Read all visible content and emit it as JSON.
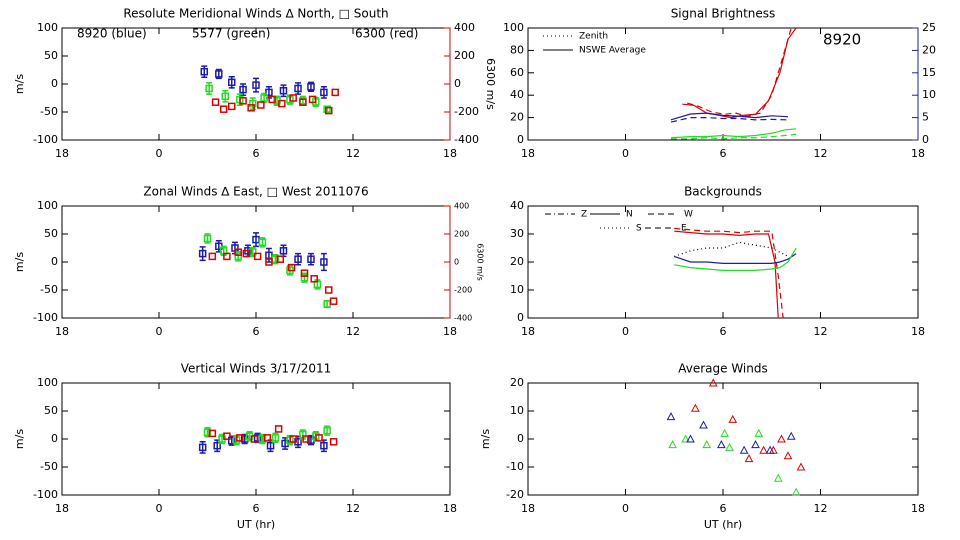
{
  "chart_data": [
    {
      "type": "scatter",
      "title": "Resolute Meridional Winds ∆ North, □ South",
      "xlim": [
        -6,
        18
      ],
      "xticks": [
        {
          "value": -6,
          "label": "18"
        },
        0,
        6,
        12,
        18
      ],
      "ylim": [
        -100,
        100
      ],
      "yticks": [
        -100,
        -50,
        0,
        50,
        100
      ],
      "ylabel": "m/s",
      "y2lim": [
        -400,
        400
      ],
      "y2ticks": [
        -400,
        -200,
        0,
        200,
        400
      ],
      "y2label": "6300 m/s",
      "y2color": "#dd0000",
      "annotations": [
        {
          "text": "8920 (blue)",
          "color": "#1c1ca8"
        },
        {
          "text": "5577 (green)",
          "color": "#22dd22"
        },
        {
          "text": "6300 (red)",
          "color": "#dd0000"
        }
      ],
      "series": [
        {
          "color": "#1c1ca8",
          "marker": "square",
          "x": [
            2.8,
            3.7,
            4.5,
            5.2,
            6.0,
            6.8,
            7.7,
            8.6,
            9.4,
            10.2
          ],
          "values": [
            22,
            18,
            3,
            -10,
            -2,
            -15,
            -12,
            -8,
            -5,
            -15
          ],
          "errors": [
            10,
            8,
            10,
            10,
            12,
            10,
            10,
            10,
            8,
            10
          ]
        },
        {
          "color": "#22dd22",
          "marker": "square",
          "x": [
            3.1,
            4.1,
            5.0,
            5.8,
            6.5,
            7.3,
            8.1,
            8.9,
            9.7,
            10.4
          ],
          "values": [
            -8,
            -22,
            -28,
            -35,
            -25,
            -30,
            -28,
            -30,
            -32,
            -45
          ],
          "errors": [
            10,
            10,
            10,
            10,
            8,
            8,
            8,
            8,
            8,
            5
          ]
        },
        {
          "color": "#dd0000",
          "marker": "square",
          "axis": "y2",
          "x": [
            3.5,
            4.0,
            4.5,
            5.2,
            5.7,
            6.3,
            7.0,
            7.6,
            8.3,
            8.9,
            9.5,
            10.5,
            10.9
          ],
          "values": [
            -130,
            -180,
            -160,
            -120,
            -170,
            -150,
            -110,
            -140,
            -100,
            -130,
            -110,
            -190,
            -60
          ]
        }
      ]
    },
    {
      "type": "line",
      "title": "Signal Brightness",
      "xlim": [
        -6,
        18
      ],
      "xticks": [
        {
          "value": -6,
          "label": "18"
        },
        0,
        6,
        12,
        18
      ],
      "ylim": [
        0,
        100
      ],
      "yticks": [
        0,
        20,
        40,
        60,
        80,
        100
      ],
      "y2lim": [
        0,
        25
      ],
      "y2ticks": [
        0,
        5,
        10,
        15,
        20,
        25
      ],
      "y2color": "#1c1ca8",
      "annotations": [
        {
          "text": "8920",
          "color": "#1c1ca8"
        }
      ],
      "legend": [
        {
          "label": "Zenith",
          "dash": "dotted"
        },
        {
          "label": "NSWE Average",
          "dash": "solid"
        }
      ],
      "series": [
        {
          "color": "#dd0000",
          "dash": "solid",
          "x": [
            3.5,
            4.2,
            5.0,
            5.8,
            6.5,
            7.2,
            8.0,
            8.8,
            9.5,
            10.0,
            10.5
          ],
          "values": [
            32,
            31,
            24,
            22,
            20,
            22,
            23,
            35,
            60,
            90,
            100
          ]
        },
        {
          "color": "#dd0000",
          "dash": "dashed",
          "x": [
            3.8,
            4.5,
            5.3,
            6.1,
            6.8,
            7.5,
            8.3,
            9.0,
            9.6,
            10.2
          ],
          "values": [
            33,
            30,
            25,
            23,
            24,
            21,
            24,
            40,
            70,
            100
          ]
        },
        {
          "color": "#1c1ca8",
          "dash": "solid",
          "axis": "y2",
          "x": [
            2.8,
            4.0,
            5.0,
            6.0,
            7.0,
            8.0,
            9.0,
            10.0
          ],
          "values": [
            4.5,
            5.8,
            6.0,
            5.5,
            5.3,
            5.0,
            5.4,
            5.2
          ]
        },
        {
          "color": "#1c1ca8",
          "dash": "dashed",
          "axis": "y2",
          "x": [
            2.8,
            4.0,
            5.0,
            6.0,
            7.0,
            8.0,
            9.0,
            10.0
          ],
          "values": [
            4.0,
            5.0,
            5.0,
            4.8,
            4.8,
            4.5,
            4.6,
            4.5
          ]
        },
        {
          "color": "#22dd22",
          "dash": "solid",
          "x": [
            2.8,
            4.0,
            5.0,
            6.0,
            7.0,
            8.0,
            9.0,
            9.8,
            10.5
          ],
          "values": [
            2,
            3,
            3,
            4,
            3,
            4,
            6,
            9,
            10
          ]
        },
        {
          "color": "#22dd22",
          "dash": "dashed",
          "x": [
            2.8,
            4.0,
            5.0,
            6.0,
            7.0,
            8.0,
            9.0,
            9.8,
            10.5
          ],
          "values": [
            1,
            1,
            2,
            1,
            2,
            2,
            3,
            4,
            5
          ]
        }
      ]
    },
    {
      "type": "scatter",
      "title": "Zonal Winds ∆ East, □ West 2011076",
      "xlim": [
        -6,
        18
      ],
      "xticks": [
        {
          "value": -6,
          "label": "18"
        },
        0,
        6,
        12,
        18
      ],
      "ylim": [
        -100,
        100
      ],
      "yticks": [
        -100,
        -50,
        0,
        50,
        100
      ],
      "ylabel": "m/s",
      "y2lim": [
        -400,
        400
      ],
      "y2ticks": [
        -400,
        -200,
        0,
        200,
        400
      ],
      "y2label": "6300 m/s",
      "y2color": "#dd0000",
      "series": [
        {
          "color": "#1c1ca8",
          "marker": "square",
          "x": [
            2.7,
            3.7,
            4.7,
            5.5,
            6.0,
            6.8,
            7.7,
            8.6,
            9.4,
            10.2
          ],
          "values": [
            15,
            28,
            25,
            20,
            40,
            12,
            20,
            5,
            5,
            0
          ],
          "errors": [
            12,
            10,
            10,
            10,
            12,
            12,
            10,
            10,
            10,
            15
          ]
        },
        {
          "color": "#22dd22",
          "marker": "square",
          "x": [
            3.0,
            4.0,
            4.9,
            5.8,
            6.4,
            7.2,
            8.1,
            9.0,
            9.8,
            10.4
          ],
          "values": [
            42,
            20,
            10,
            18,
            35,
            5,
            -15,
            -28,
            -40,
            -75
          ],
          "errors": [
            8,
            8,
            8,
            8,
            8,
            8,
            8,
            8,
            8,
            6
          ]
        },
        {
          "color": "#dd0000",
          "marker": "square",
          "axis": "y2",
          "x": [
            3.3,
            4.2,
            4.9,
            5.4,
            6.1,
            6.8,
            7.5,
            8.2,
            9.0,
            9.6,
            10.5,
            10.8
          ],
          "values": [
            40,
            40,
            70,
            60,
            40,
            0,
            20,
            -40,
            -80,
            -120,
            -200,
            -280
          ]
        }
      ]
    },
    {
      "type": "line",
      "title": "Backgrounds",
      "xlim": [
        -6,
        18
      ],
      "xticks": [
        {
          "value": -6,
          "label": "18"
        },
        0,
        6,
        12,
        18
      ],
      "ylim": [
        0,
        40
      ],
      "yticks": [
        0,
        10,
        20,
        30,
        40
      ],
      "legend": [
        {
          "label": "Z",
          "dash": "dashdot"
        },
        {
          "label": "N",
          "dash": "solid"
        },
        {
          "label": "W",
          "dash": "dashed"
        },
        {
          "label": "S",
          "dash": "dotted"
        },
        {
          "label": "E",
          "dash": "dashed"
        }
      ],
      "series": [
        {
          "color": "#dd0000",
          "dash": "solid",
          "x": [
            3,
            4,
            5,
            6,
            7,
            8,
            8.8,
            9.2,
            9.4
          ],
          "values": [
            31,
            30.5,
            30,
            30,
            29.5,
            30,
            30,
            20,
            0
          ]
        },
        {
          "color": "#dd0000",
          "dash": "dashed",
          "x": [
            3,
            4,
            5,
            6,
            7,
            8,
            9.0,
            9.4,
            9.7
          ],
          "values": [
            32,
            31.5,
            31,
            31,
            30.5,
            31,
            31,
            15,
            0
          ]
        },
        {
          "color": "#000000",
          "dash": "dotted",
          "x": [
            3,
            4,
            5,
            6,
            6.5,
            7,
            8,
            9,
            10
          ],
          "values": [
            22,
            24,
            25,
            25,
            26,
            27,
            26,
            25,
            22
          ]
        },
        {
          "color": "#1c1ca8",
          "dash": "solid",
          "x": [
            3,
            4,
            5,
            6,
            7,
            8,
            9,
            9.5,
            10,
            10.5
          ],
          "values": [
            22,
            20,
            20,
            19.5,
            19.5,
            19.5,
            19.5,
            20,
            21,
            23
          ]
        },
        {
          "color": "#22dd22",
          "dash": "solid",
          "x": [
            3,
            4,
            5,
            6,
            7,
            8,
            9,
            9.5,
            10,
            10.5
          ],
          "values": [
            19,
            18,
            17.5,
            17,
            17,
            17,
            17.5,
            18,
            20,
            25
          ]
        }
      ]
    },
    {
      "type": "scatter",
      "title": "Vertical Winds 3/17/2011",
      "xlim": [
        -6,
        18
      ],
      "xticks": [
        {
          "value": -6,
          "label": "18"
        },
        0,
        6,
        12,
        18
      ],
      "ylim": [
        -100,
        100
      ],
      "yticks": [
        -100,
        -50,
        0,
        50,
        100
      ],
      "ylabel": "m/s",
      "xlabel": "UT (hr)",
      "series": [
        {
          "color": "#1c1ca8",
          "marker": "square",
          "x": [
            2.7,
            3.6,
            4.5,
            5.3,
            6.1,
            6.9,
            7.8,
            8.6,
            9.4,
            10.2
          ],
          "values": [
            -15,
            -12,
            -3,
            0,
            2,
            -12,
            -8,
            -5,
            -2,
            -12
          ],
          "errors": [
            10,
            10,
            8,
            8,
            8,
            10,
            10,
            10,
            8,
            10
          ]
        },
        {
          "color": "#22dd22",
          "marker": "square",
          "x": [
            3.0,
            3.9,
            4.8,
            5.6,
            6.4,
            7.2,
            8.1,
            8.9,
            9.7,
            10.4
          ],
          "values": [
            12,
            0,
            -2,
            5,
            0,
            2,
            -2,
            8,
            5,
            15
          ],
          "errors": [
            8,
            8,
            8,
            8,
            8,
            8,
            8,
            8,
            8,
            8
          ]
        },
        {
          "color": "#dd0000",
          "marker": "square",
          "x": [
            3.3,
            4.2,
            5.0,
            5.9,
            6.7,
            7.4,
            8.3,
            9.1,
            9.9,
            10.8
          ],
          "values": [
            10,
            5,
            2,
            0,
            2,
            18,
            0,
            0,
            2,
            -5
          ]
        }
      ]
    },
    {
      "type": "scatter",
      "title": "Average Winds",
      "xlim": [
        -6,
        18
      ],
      "xticks": [
        {
          "value": -6,
          "label": "18"
        },
        0,
        6,
        12,
        18
      ],
      "ylim": [
        -20,
        20
      ],
      "yticks": [
        -20,
        -10,
        0,
        10,
        20
      ],
      "ylabel": "m/s",
      "xlabel": "UT (hr)",
      "series": [
        {
          "color": "#dd0000",
          "marker": "triangle",
          "x": [
            4.3,
            5.4,
            6.6,
            7.6,
            8.5,
            9.1,
            9.6,
            10.0,
            10.8
          ],
          "values": [
            11,
            20,
            7,
            -7,
            -4,
            -4,
            0,
            -6,
            -10
          ]
        },
        {
          "color": "#22dd22",
          "marker": "triangle",
          "x": [
            2.9,
            3.7,
            5.0,
            6.1,
            6.4,
            8.2,
            9.4,
            10.5
          ],
          "values": [
            -2,
            0,
            -2,
            2,
            -3,
            2,
            -14,
            -19
          ]
        },
        {
          "color": "#1c1ca8",
          "marker": "triangle",
          "x": [
            2.8,
            4.0,
            4.8,
            5.9,
            7.3,
            8.0,
            8.9,
            10.2
          ],
          "values": [
            8,
            0,
            5,
            -2,
            -4,
            -2,
            -4,
            1
          ]
        }
      ]
    }
  ]
}
